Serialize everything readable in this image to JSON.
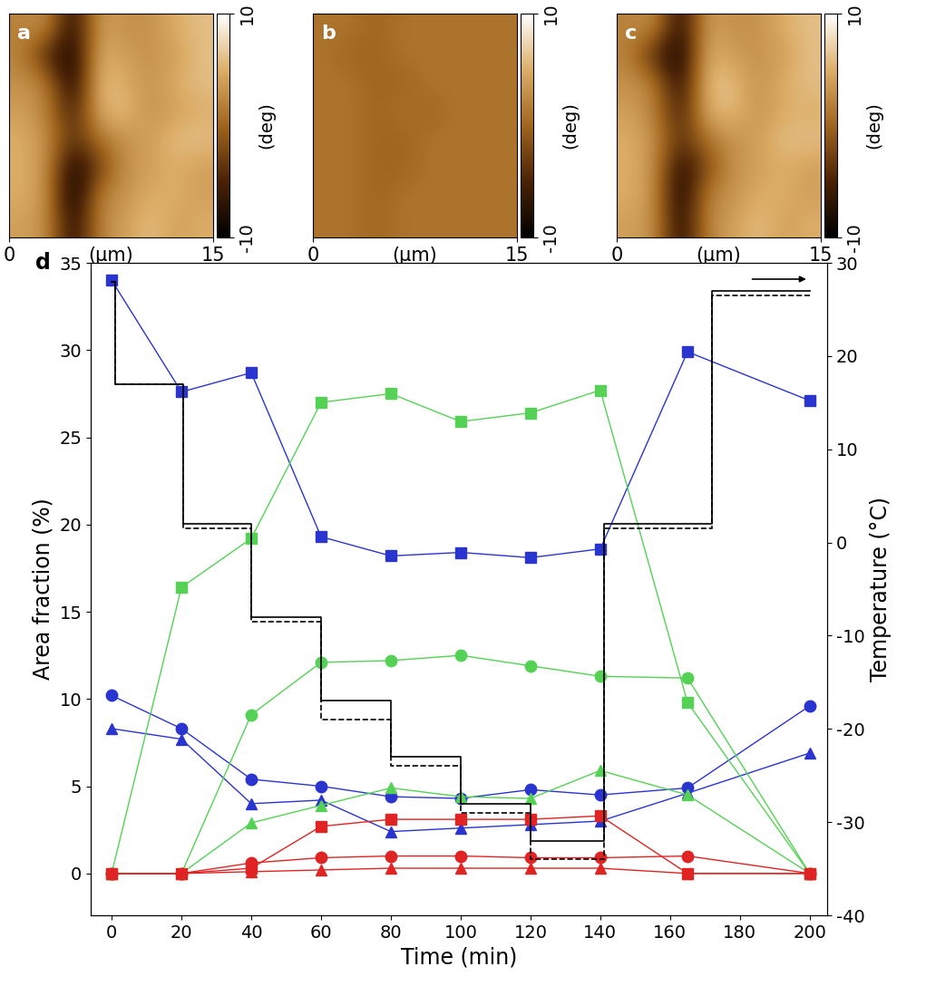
{
  "chart_data": [
    {
      "type": "image",
      "panel_label": "a",
      "xlabel": "(μm)",
      "xlim": [
        0,
        15
      ],
      "xticks": [
        0,
        15
      ],
      "ylim": [
        0,
        15
      ],
      "tick_labels": "x",
      "cells": [
        [
          2,
          3,
          -8,
          4,
          3,
          3,
          5,
          6
        ],
        [
          2,
          -5,
          -9,
          5,
          4,
          3,
          4,
          6
        ],
        [
          3,
          2,
          -9,
          6,
          5,
          3,
          5,
          6
        ],
        [
          4,
          2,
          -6,
          5,
          6,
          3,
          4,
          5
        ],
        [
          5,
          3,
          -4,
          1,
          3,
          4,
          6,
          6
        ],
        [
          5,
          3,
          -9,
          -3,
          3,
          4,
          5,
          4
        ],
        [
          5,
          3,
          -10,
          2,
          3,
          5,
          5,
          4
        ],
        [
          4,
          3,
          -8,
          2,
          4,
          6,
          4,
          5
        ]
      ],
      "colorbar_label": "(deg)",
      "colorbar_range": [
        -10,
        10
      ],
      "colorbar_ticks": [
        -10,
        10
      ]
    },
    {
      "type": "image",
      "panel_label": "b",
      "xlabel": "(μm)",
      "xlim": [
        0,
        15
      ],
      "xticks": [
        0,
        15
      ],
      "ylim": [
        0,
        15
      ],
      "tick_labels": "x",
      "cells": [
        [
          1,
          1,
          0,
          1,
          1,
          1,
          1,
          1
        ],
        [
          1,
          0,
          0,
          1,
          1,
          1,
          1,
          1
        ],
        [
          1,
          1,
          0,
          0,
          1,
          1,
          1,
          1
        ],
        [
          1,
          1,
          0,
          1,
          0,
          1,
          1,
          1
        ],
        [
          1,
          1,
          0,
          0,
          1,
          1,
          1,
          1
        ],
        [
          1,
          1,
          0,
          0,
          1,
          1,
          1,
          1
        ],
        [
          1,
          1,
          0,
          1,
          1,
          1,
          1,
          1
        ],
        [
          1,
          1,
          0,
          1,
          1,
          1,
          1,
          1
        ]
      ],
      "colorbar_label": "(deg)",
      "colorbar_range": [
        -10,
        10
      ],
      "colorbar_ticks": [
        -10,
        10
      ]
    },
    {
      "type": "image",
      "panel_label": "c",
      "xlabel": "(μm)",
      "xlim": [
        0,
        15
      ],
      "xticks": [
        0,
        15
      ],
      "ylim": [
        0,
        15
      ],
      "tick_labels": "x",
      "cells": [
        [
          2,
          3,
          -8,
          4,
          3,
          3,
          5,
          6
        ],
        [
          2,
          -5,
          -9,
          5,
          4,
          3,
          4,
          6
        ],
        [
          3,
          2,
          -8,
          6,
          6,
          3,
          5,
          6
        ],
        [
          4,
          2,
          -6,
          5,
          6,
          3,
          5,
          5
        ],
        [
          5,
          3,
          -4,
          1,
          3,
          4,
          6,
          6
        ],
        [
          5,
          3,
          -8,
          -2,
          3,
          4,
          5,
          4
        ],
        [
          5,
          3,
          -9,
          2,
          3,
          5,
          5,
          4
        ],
        [
          4,
          3,
          -8,
          2,
          4,
          6,
          4,
          5
        ]
      ],
      "colorbar_label": "(deg)",
      "colorbar_range": [
        -10,
        10
      ],
      "colorbar_ticks": [
        -10,
        10
      ]
    },
    {
      "type": "line",
      "panel_label": "d",
      "xlabel": "Time (min)",
      "ylabel": "Area fraction (%)",
      "y2label": "Temperature (°C)",
      "x": [
        0,
        20,
        40,
        60,
        80,
        100,
        120,
        140,
        165,
        200
      ],
      "xlim": [
        -6,
        205
      ],
      "xticks": [
        0,
        20,
        40,
        60,
        80,
        100,
        120,
        140,
        160,
        180,
        200
      ],
      "ylim": [
        -2.4,
        35
      ],
      "yticks": [
        0,
        5,
        10,
        15,
        20,
        25,
        30,
        35
      ],
      "y2lim": [
        -40,
        30
      ],
      "y2ticks": [
        -40,
        -30,
        -20,
        -10,
        0,
        10,
        20,
        30
      ],
      "series": [
        {
          "color": "#2a35d0",
          "marker": "square",
          "values": [
            34,
            27.6,
            28.7,
            19.3,
            18.2,
            18.4,
            18.1,
            18.6,
            29.9,
            27.1
          ]
        },
        {
          "color": "#2a35d0",
          "marker": "circle",
          "values": [
            10.2,
            8.3,
            5.4,
            5.0,
            4.4,
            4.3,
            4.8,
            4.5,
            4.9,
            9.6
          ]
        },
        {
          "color": "#2a35d0",
          "marker": "triangle",
          "values": [
            8.3,
            7.7,
            4.0,
            4.2,
            2.4,
            2.6,
            2.8,
            3.0,
            4.6,
            6.9
          ]
        },
        {
          "color": "#55d255",
          "marker": "square",
          "values": [
            0,
            16.4,
            19.2,
            27.0,
            27.5,
            25.9,
            26.4,
            27.7,
            9.8,
            0
          ]
        },
        {
          "color": "#55d255",
          "marker": "circle",
          "values": [
            0,
            0,
            9.1,
            12.1,
            12.2,
            12.5,
            11.9,
            11.3,
            11.2,
            0
          ]
        },
        {
          "color": "#55d255",
          "marker": "triangle",
          "values": [
            0,
            0,
            2.9,
            3.9,
            4.9,
            4.4,
            4.3,
            5.9,
            4.5,
            0
          ]
        },
        {
          "color": "#e02424",
          "marker": "square",
          "values": [
            0,
            0,
            0.3,
            2.7,
            3.1,
            3.1,
            3.1,
            3.3,
            0,
            0
          ]
        },
        {
          "color": "#e02424",
          "marker": "circle",
          "values": [
            0,
            0,
            0.6,
            0.9,
            1.0,
            1.0,
            0.9,
            0.9,
            1.0,
            0
          ]
        },
        {
          "color": "#e02424",
          "marker": "triangle",
          "values": [
            0,
            0,
            0.1,
            0.2,
            0.3,
            0.3,
            0.3,
            0.3,
            0,
            0
          ]
        },
        {
          "type": "step",
          "axis": "y2",
          "color": "#000000",
          "line_style": "solid",
          "x": [
            0,
            1,
            20.5,
            40,
            60,
            80,
            100,
            120,
            141,
            172,
            200
          ],
          "values": [
            28,
            17,
            2,
            -8,
            -17,
            -23,
            -28,
            -32,
            2,
            27,
            27
          ]
        },
        {
          "type": "step",
          "axis": "y2",
          "color": "#000000",
          "line_style": "dashed",
          "x": [
            0,
            1,
            20.5,
            40,
            60,
            80,
            100,
            120,
            141,
            172,
            200
          ],
          "values": [
            28,
            17,
            1.5,
            -8.5,
            -19,
            -24,
            -29,
            -34,
            1.5,
            26.5,
            26.5
          ]
        }
      ]
    }
  ]
}
